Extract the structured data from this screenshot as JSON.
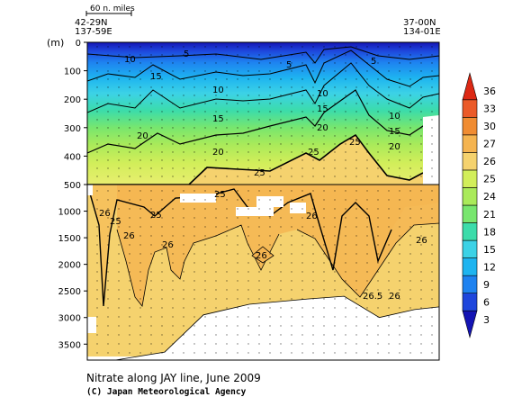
{
  "chart_data": {
    "type": "heatmap",
    "title": "Nitrate along JAY line, June 2009",
    "credit": "(C) Japan Meteorological Agency",
    "ylabel": "(m)",
    "scale_bar_label": "60 n. miles",
    "left_station": {
      "lat": "42-29N",
      "lon": "137-59E"
    },
    "right_station": {
      "lat": "37-00N",
      "lon": "134-01E"
    },
    "y_upper": {
      "range": [
        0,
        500
      ],
      "ticks": [
        "0",
        "100",
        "200",
        "300",
        "400",
        "500"
      ]
    },
    "y_lower": {
      "range": [
        500,
        3800
      ],
      "ticks": [
        "1000",
        "1500",
        "2000",
        "2500",
        "3000",
        "3500"
      ]
    },
    "colorbar": {
      "ticks": [
        "3",
        "6",
        "9",
        "12",
        "15",
        "18",
        "21",
        "24",
        "25",
        "26",
        "27",
        "30",
        "33",
        "36"
      ],
      "colors": [
        "#1414b4",
        "#1e46dc",
        "#1e82f0",
        "#1eb4f0",
        "#3cd2e6",
        "#3cdcaa",
        "#78e66e",
        "#aaea5a",
        "#d2ee5a",
        "#f5d26e",
        "#f5b450",
        "#f08c32",
        "#eb5a28",
        "#dc2814"
      ]
    },
    "contour_labels": [
      "5",
      "5",
      "5",
      "10",
      "10",
      "10",
      "10",
      "15",
      "15",
      "15",
      "15",
      "20",
      "20",
      "20",
      "20",
      "25",
      "25",
      "25",
      "25",
      "25",
      "25",
      "26",
      "26",
      "26",
      "26",
      "26",
      "26",
      "26.5",
      "26"
    ],
    "bottom_depth_m": [
      [
        0,
        3800
      ],
      [
        0.08,
        3800
      ],
      [
        0.22,
        3650
      ],
      [
        0.33,
        2950
      ],
      [
        0.46,
        2750
      ],
      [
        0.63,
        2650
      ],
      [
        0.73,
        2600
      ],
      [
        0.83,
        3000
      ],
      [
        0.93,
        2850
      ],
      [
        1.0,
        2800
      ]
    ]
  }
}
